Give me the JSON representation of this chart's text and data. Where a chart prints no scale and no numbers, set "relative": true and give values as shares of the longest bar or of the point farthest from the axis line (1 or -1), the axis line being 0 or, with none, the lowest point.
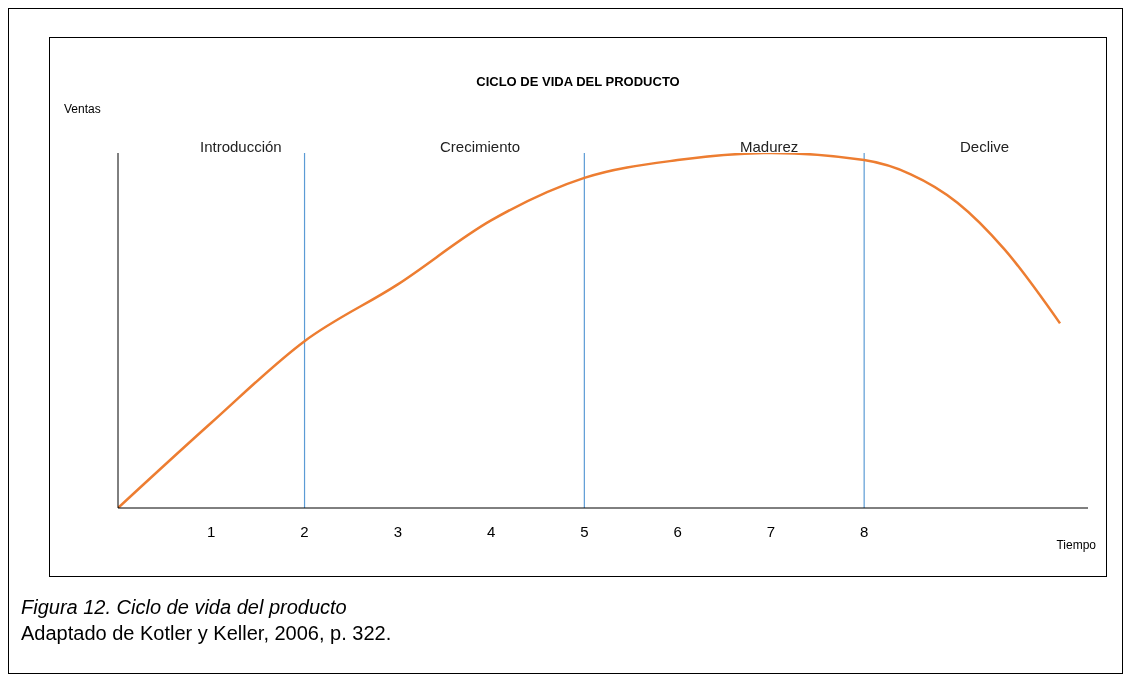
{
  "chart_data": {
    "type": "line",
    "title": "CICLO DE VIDA DEL PRODUCTO",
    "xlabel": "Tiempo",
    "ylabel": "Ventas",
    "relative": true,
    "x": [
      0,
      1,
      2,
      3,
      4,
      5,
      6,
      7,
      8,
      8.5,
      9,
      9.5,
      10.1
    ],
    "series": [
      {
        "color": "#ed7d31",
        "values": [
          0,
          0.24,
          0.47,
          0.63,
          0.81,
          0.93,
          0.98,
          1,
          0.98,
          0.94,
          0.86,
          0.73,
          0.52
        ]
      }
    ],
    "xlim": [
      0,
      10.4
    ],
    "xticks": [
      1,
      2,
      3,
      4,
      5,
      6,
      7,
      8
    ],
    "ref_lines": [
      {
        "axis": "x",
        "value": 2,
        "color": "#5b9bd5"
      },
      {
        "axis": "x",
        "value": 5,
        "color": "#5b9bd5"
      },
      {
        "axis": "x",
        "value": 8,
        "color": "#5b9bd5"
      }
    ],
    "annotations": [
      "Introducción",
      "Crecimiento",
      "Madurez",
      "Declive",
      "Figura 12. Ciclo de vida del producto",
      "Adaptado de Kotler y Keller, 2006, p. 322."
    ],
    "grid": false,
    "legend": false,
    "marker": "none",
    "line_style": "solid"
  }
}
